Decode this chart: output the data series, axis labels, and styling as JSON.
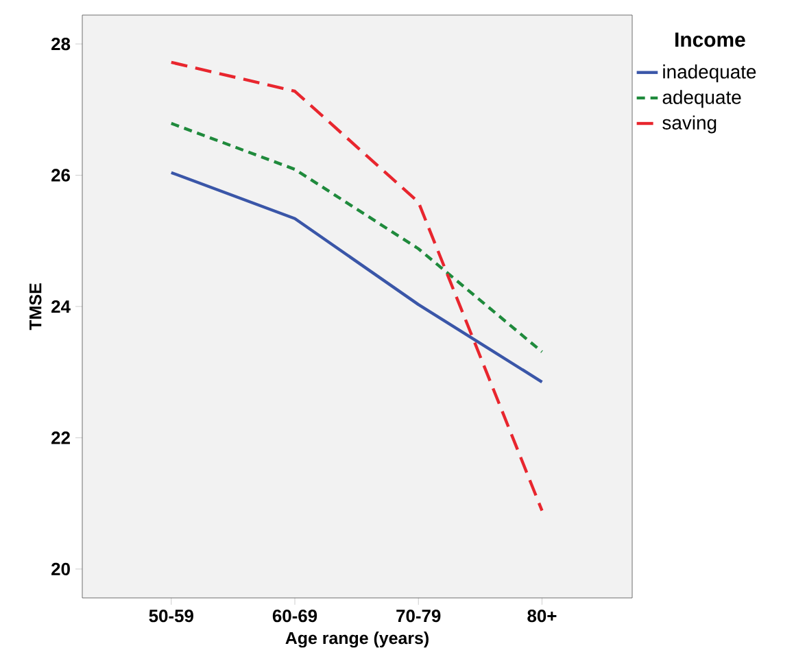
{
  "chart_data": {
    "type": "line",
    "xlabel": "Age range (years)",
    "ylabel": "TMSE",
    "legend_title": "Income",
    "categories": [
      "50-59",
      "60-69",
      "70-79",
      "80+"
    ],
    "series": [
      {
        "name": "inadequate",
        "color": "#3a56a8",
        "line_style": "solid",
        "values": [
          26.04,
          25.34,
          24.03,
          22.85
        ]
      },
      {
        "name": "adequate",
        "color": "#1f8a3c",
        "line_style": "dashed",
        "values": [
          26.79,
          26.09,
          24.88,
          23.31
        ]
      },
      {
        "name": "saving",
        "color": "#e8262e",
        "line_style": "dashed",
        "values": [
          27.72,
          27.28,
          25.59,
          20.89
        ]
      }
    ],
    "ylim": [
      19.56,
      28.44
    ],
    "yticks": [
      20,
      22,
      24,
      26,
      28
    ],
    "grid": false,
    "legend": "top right",
    "marker": "none"
  }
}
